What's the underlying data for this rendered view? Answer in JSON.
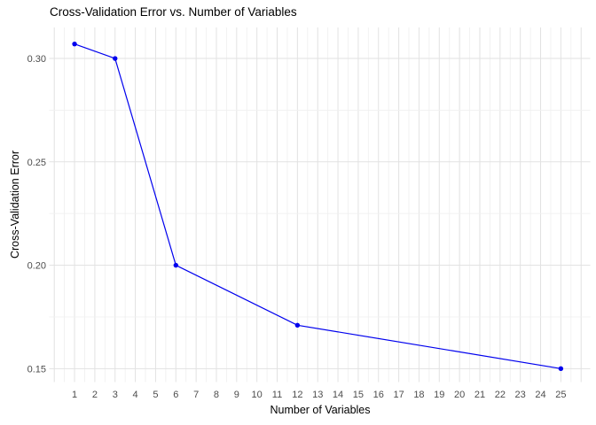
{
  "chart_data": {
    "type": "line",
    "title": "Cross-Validation Error vs. Number of Variables",
    "xlabel": "Number of Variables",
    "ylabel": "Cross-Validation Error",
    "x": [
      1,
      3,
      6,
      12,
      25
    ],
    "y": [
      0.307,
      0.3,
      0.2,
      0.171,
      0.15
    ],
    "x_ticks": [
      1,
      2,
      3,
      4,
      5,
      6,
      7,
      8,
      9,
      10,
      11,
      12,
      13,
      14,
      15,
      16,
      17,
      18,
      19,
      20,
      21,
      22,
      23,
      24,
      25
    ],
    "y_ticks": [
      0.15,
      0.2,
      0.25,
      0.3
    ],
    "y_tick_labels": [
      "0.15",
      "0.20",
      "0.25",
      "0.30"
    ],
    "y_minor_ticks": [
      0.175,
      0.225,
      0.275
    ],
    "xlim": [
      -0.25,
      26.45
    ],
    "ylim": [
      0.1435,
      0.315
    ],
    "x_grid_range": [
      0,
      26
    ],
    "x_minor_step": 0.5,
    "grid": true,
    "legend": false,
    "colors": {
      "line": "#0000EE",
      "point": "#0000EE",
      "grid_major": "#E2E2E2",
      "grid_minor": "#F0F0F0",
      "tick_label": "#4D4D4D",
      "text": "#000000",
      "background": "#FFFFFF"
    }
  }
}
